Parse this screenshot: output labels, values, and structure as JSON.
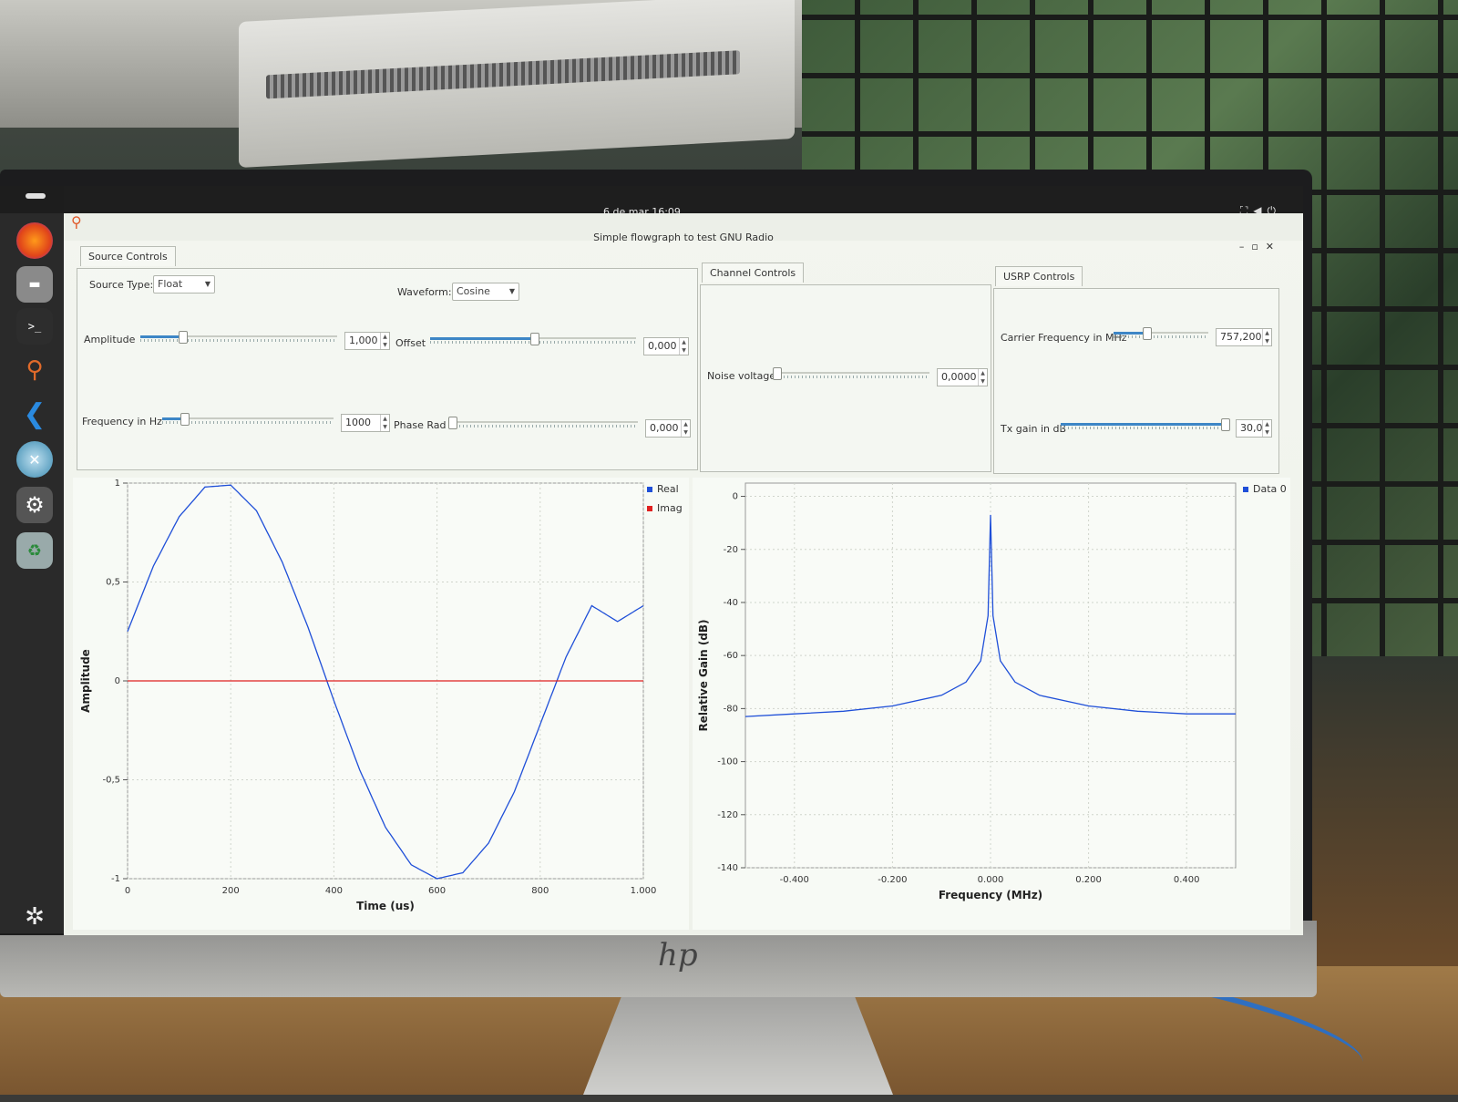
{
  "topbar": {
    "clock": "6 de mar  16:09"
  },
  "window": {
    "title": "Simple flowgraph to test GNU Radio"
  },
  "source_controls": {
    "tab_label": "Source Controls",
    "source_type_label": "Source Type:",
    "source_type_value": "Float",
    "waveform_label": "Waveform:",
    "waveform_value": "Cosine",
    "amplitude_label": "Amplitude",
    "amplitude_value": "1,000",
    "offset_label": "Offset",
    "offset_value": "0,000",
    "frequency_label": "Frequency in Hz",
    "frequency_value": "1000",
    "phase_label": "Phase Rad",
    "phase_value": "0,000"
  },
  "channel_controls": {
    "tab_label": "Channel Controls",
    "noise_label": "Noise voltage",
    "noise_value": "0,0000"
  },
  "usrp_controls": {
    "tab_label": "USRP Controls",
    "carrier_label": "Carrier Frequency in MHz",
    "carrier_value": "757,200",
    "txgain_label": "Tx gain in dB",
    "txgain_value": "30,0"
  },
  "colors": {
    "real": "#1f4fd8",
    "imag": "#e02020",
    "accent": "#3d86c6"
  },
  "chart_data": [
    {
      "type": "line",
      "title": "",
      "xlabel": "Time (us)",
      "ylabel": "Amplitude",
      "xlim": [
        0,
        1000
      ],
      "ylim": [
        -1,
        1
      ],
      "x_ticks": [
        "0",
        "200",
        "400",
        "600",
        "800",
        "1.000"
      ],
      "y_ticks": [
        "1",
        "0,5",
        "0",
        "-0,5",
        "-1"
      ],
      "legend": [
        "Real",
        "Imag"
      ],
      "legend_position": "top-right",
      "grid": true,
      "series": [
        {
          "name": "Real",
          "x": [
            0,
            50,
            100,
            150,
            200,
            250,
            300,
            350,
            400,
            450,
            500,
            550,
            600,
            650,
            700,
            750,
            800,
            850,
            900,
            950,
            1000
          ],
          "values": [
            0.25,
            0.58,
            0.83,
            0.98,
            0.99,
            0.86,
            0.6,
            0.27,
            -0.1,
            -0.45,
            -0.74,
            -0.93,
            -1.0,
            -0.97,
            -0.82,
            -0.56,
            -0.22,
            0.12,
            0.38,
            0.3,
            0.38
          ]
        },
        {
          "name": "Imag",
          "x": [
            0,
            1000
          ],
          "values": [
            0,
            0
          ]
        }
      ]
    },
    {
      "type": "line",
      "title": "",
      "xlabel": "Frequency (MHz)",
      "ylabel": "Relative Gain (dB)",
      "xlim": [
        -0.5,
        0.5
      ],
      "ylim": [
        -140,
        5
      ],
      "x_ticks": [
        "-0.400",
        "-0.200",
        "0.000",
        "0.200",
        "0.400"
      ],
      "y_ticks": [
        "0",
        "-20",
        "-40",
        "-60",
        "-80",
        "-100",
        "-120",
        "-140"
      ],
      "legend": [
        "Data 0"
      ],
      "legend_position": "top-right",
      "grid": true,
      "series": [
        {
          "name": "Data 0",
          "x": [
            -0.5,
            -0.4,
            -0.3,
            -0.2,
            -0.1,
            -0.05,
            -0.02,
            -0.005,
            0,
            0.005,
            0.02,
            0.05,
            0.1,
            0.2,
            0.3,
            0.4,
            0.5
          ],
          "values": [
            -83,
            -82,
            -81,
            -79,
            -75,
            -70,
            -62,
            -45,
            -7,
            -45,
            -62,
            -70,
            -75,
            -79,
            -81,
            -82,
            -82
          ]
        }
      ]
    }
  ]
}
